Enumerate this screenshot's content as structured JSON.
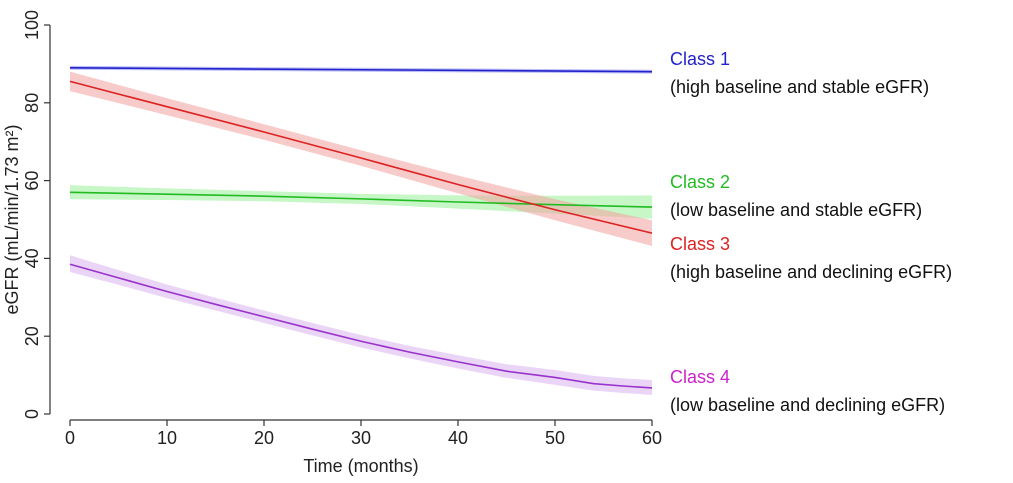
{
  "chart_data": {
    "type": "line",
    "xlabel": "Time (months)",
    "ylabel": "eGFR (mL/min/1.73 m²)",
    "xlim": [
      0,
      60
    ],
    "ylim": [
      0,
      100
    ],
    "xticks": [
      0,
      10,
      20,
      30,
      40,
      50,
      60
    ],
    "yticks": [
      0,
      20,
      40,
      60,
      80,
      100
    ],
    "grid": false,
    "legend_position": "right",
    "series": [
      {
        "name": "Class 1",
        "description": "(high baseline and stable eGFR)",
        "color": "#2222cc",
        "band_color": "#8888ee",
        "x": [
          0,
          60
        ],
        "y": [
          89,
          88
        ],
        "lower": [
          88.5,
          87.5
        ],
        "upper": [
          89.5,
          88.5
        ]
      },
      {
        "name": "Class 2",
        "description": "(low baseline and stable eGFR)",
        "color": "#22bb22",
        "band_color": "#99ee99",
        "x": [
          0,
          10,
          20,
          30,
          40,
          50,
          60
        ],
        "y": [
          57,
          56.5,
          56,
          55.3,
          54.5,
          53.8,
          53.2
        ],
        "lower": [
          55.2,
          55,
          54.7,
          54,
          52.8,
          51.5,
          50.2
        ],
        "upper": [
          58.8,
          58,
          57.3,
          56.6,
          56.2,
          56.1,
          56.2
        ]
      },
      {
        "name": "Class 3",
        "description": "(high baseline and declining eGFR)",
        "color": "#dd2222",
        "band_color": "#f2a0a0",
        "x": [
          0,
          10,
          20,
          30,
          40,
          50,
          60
        ],
        "y": [
          85.5,
          79,
          72.5,
          65.8,
          59,
          52.5,
          46.5
        ],
        "lower": [
          83,
          76.8,
          70.5,
          63.8,
          56.7,
          49.8,
          43.2
        ],
        "upper": [
          88,
          81.2,
          74.5,
          67.8,
          61.3,
          55.2,
          49.8
        ]
      },
      {
        "name": "Class 4",
        "description": "(low baseline and declining eGFR)",
        "color": "#9933cc",
        "band_color": "#d9b3ee",
        "legend_color": "#cc22cc",
        "x": [
          0,
          5,
          10,
          15,
          20,
          25,
          30,
          35,
          40,
          45,
          50,
          54,
          57,
          60
        ],
        "y": [
          38.5,
          35,
          31.5,
          28.2,
          25,
          21.8,
          18.7,
          15.9,
          13.4,
          11,
          9.4,
          7.8,
          7.2,
          6.7
        ],
        "lower": [
          36.5,
          33.2,
          29.8,
          26.6,
          23.4,
          20.2,
          17.1,
          14.3,
          11.7,
          9.3,
          7.5,
          6,
          5.4,
          4.9
        ],
        "upper": [
          40.8,
          37,
          33.3,
          29.9,
          26.6,
          23.4,
          20.3,
          17.5,
          15.1,
          12.8,
          11.3,
          9.8,
          9.2,
          8.7
        ]
      }
    ]
  }
}
